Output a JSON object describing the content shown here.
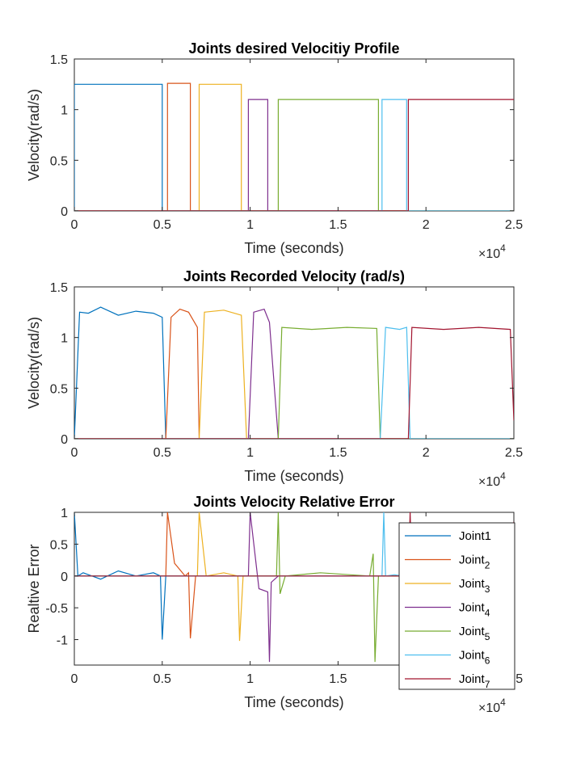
{
  "chart_data": [
    {
      "type": "line",
      "title": "Joints desired Velocitiy Profile",
      "xlabel": "Time (seconds)",
      "ylabel": "Velocity(rad/s)",
      "xlim": [
        0,
        25000
      ],
      "ylim": [
        0,
        1.5
      ],
      "x_ticks": [
        "0",
        "0.5",
        "1",
        "1.5",
        "2",
        "2.5"
      ],
      "y_ticks": [
        "0",
        "0.5",
        "1",
        "1.5"
      ],
      "x_exponent_base": "×10",
      "x_exponent_power": "4",
      "grid": false,
      "series": [
        {
          "name": "Joint1",
          "color": "#0072BD",
          "x": [
            0,
            0,
            5000,
            5000,
            25000
          ],
          "y": [
            0,
            1.25,
            1.25,
            0,
            0
          ]
        },
        {
          "name": "Joint2",
          "color": "#D95319",
          "x": [
            0,
            5300,
            5300,
            6600,
            6600,
            25000
          ],
          "y": [
            0,
            0,
            1.26,
            1.26,
            0,
            0
          ]
        },
        {
          "name": "Joint3",
          "color": "#EDB120",
          "x": [
            0,
            7100,
            7100,
            9500,
            9500,
            25000
          ],
          "y": [
            0,
            0,
            1.25,
            1.25,
            0,
            0
          ]
        },
        {
          "name": "Joint4",
          "color": "#7E2F8E",
          "x": [
            0,
            9900,
            9900,
            11000,
            11000,
            25000
          ],
          "y": [
            0,
            0,
            1.1,
            1.1,
            0,
            0
          ]
        },
        {
          "name": "Joint5",
          "color": "#77AC30",
          "x": [
            0,
            11600,
            11600,
            17300,
            17300,
            25000
          ],
          "y": [
            0,
            0,
            1.1,
            1.1,
            0,
            0
          ]
        },
        {
          "name": "Joint6",
          "color": "#4DBEEE",
          "x": [
            0,
            17500,
            17500,
            18900,
            18900,
            25000
          ],
          "y": [
            0,
            0,
            1.1,
            1.1,
            0,
            0
          ]
        },
        {
          "name": "Joint7",
          "color": "#A2142F",
          "x": [
            0,
            19000,
            19000,
            25000
          ],
          "y": [
            0,
            0,
            1.1,
            1.1
          ]
        }
      ]
    },
    {
      "type": "line",
      "title": "Joints Recorded Velocity (rad/s)",
      "xlabel": "Time (seconds)",
      "ylabel": "Velocity(rad/s)",
      "xlim": [
        0,
        25000
      ],
      "ylim": [
        0,
        1.5
      ],
      "x_ticks": [
        "0",
        "0.5",
        "1",
        "1.5",
        "2",
        "2.5"
      ],
      "y_ticks": [
        "0",
        "0.5",
        "1",
        "1.5"
      ],
      "x_exponent_base": "×10",
      "x_exponent_power": "4",
      "grid": false,
      "series": [
        {
          "name": "Joint1",
          "color": "#0072BD",
          "x": [
            0,
            300,
            800,
            1500,
            2500,
            3500,
            4500,
            5000,
            5200,
            25000
          ],
          "y": [
            0,
            1.25,
            1.24,
            1.3,
            1.22,
            1.26,
            1.24,
            1.2,
            0,
            0
          ]
        },
        {
          "name": "Joint2",
          "color": "#D95319",
          "x": [
            0,
            5200,
            5500,
            6000,
            6500,
            7000,
            7100,
            25000
          ],
          "y": [
            0,
            0,
            1.2,
            1.28,
            1.25,
            1.1,
            0,
            0
          ]
        },
        {
          "name": "Joint3",
          "color": "#EDB120",
          "x": [
            0,
            7100,
            7400,
            8500,
            9500,
            9800,
            25000
          ],
          "y": [
            0,
            0,
            1.25,
            1.27,
            1.22,
            0,
            0
          ]
        },
        {
          "name": "Joint4",
          "color": "#7E2F8E",
          "x": [
            0,
            9900,
            10200,
            10800,
            11100,
            11600,
            25000
          ],
          "y": [
            0,
            0,
            1.25,
            1.28,
            1.15,
            0,
            0
          ]
        },
        {
          "name": "Joint5",
          "color": "#77AC30",
          "x": [
            0,
            11600,
            11800,
            13500,
            15500,
            17200,
            17400,
            25000
          ],
          "y": [
            0,
            0,
            1.1,
            1.08,
            1.1,
            1.09,
            0,
            0
          ]
        },
        {
          "name": "Joint6",
          "color": "#4DBEEE",
          "x": [
            0,
            17400,
            17700,
            18500,
            18900,
            19100,
            25000
          ],
          "y": [
            0,
            0,
            1.1,
            1.08,
            1.1,
            0,
            0
          ]
        },
        {
          "name": "Joint7",
          "color": "#A2142F",
          "x": [
            0,
            19000,
            19200,
            21000,
            23000,
            24800,
            25000
          ],
          "y": [
            0,
            0,
            1.1,
            1.08,
            1.1,
            1.08,
            0.18
          ]
        }
      ]
    },
    {
      "type": "line",
      "title": "Joints Velocity Relative Error",
      "xlabel": "Time (seconds)",
      "ylabel": "Realtive Error",
      "xlim": [
        0,
        25000
      ],
      "ylim": [
        -1.4,
        1
      ],
      "x_ticks": [
        "0",
        "0.5",
        "1",
        "1.5",
        "2",
        "2.5"
      ],
      "y_ticks": [
        "-1",
        "-0.5",
        "0",
        "0.5",
        "1"
      ],
      "x_exponent_base": "×10",
      "x_exponent_power": "4",
      "grid": false,
      "legend": {
        "placement": "bottom-right",
        "entries": [
          {
            "base": "Joint1",
            "sub": ""
          },
          {
            "base": "Joint",
            "sub": "2"
          },
          {
            "base": "Joint",
            "sub": "3"
          },
          {
            "base": "Joint",
            "sub": "4"
          },
          {
            "base": "Joint",
            "sub": "5"
          },
          {
            "base": "Joint",
            "sub": "6"
          },
          {
            "base": "Joint",
            "sub": "7"
          }
        ]
      },
      "series": [
        {
          "name": "Joint1",
          "color": "#0072BD",
          "x": [
            0,
            200,
            500,
            1500,
            2500,
            3500,
            4500,
            4900,
            5000,
            5200,
            25000
          ],
          "y": [
            1,
            0,
            0.05,
            -0.05,
            0.08,
            0,
            0.05,
            0,
            -1,
            0,
            0
          ]
        },
        {
          "name": "Joint2",
          "color": "#D95319",
          "x": [
            0,
            5200,
            5300,
            5700,
            6300,
            6500,
            6600,
            6900,
            7100,
            25000
          ],
          "y": [
            0,
            0,
            1,
            0.2,
            0,
            0.05,
            -0.98,
            0,
            0,
            0
          ]
        },
        {
          "name": "Joint3",
          "color": "#EDB120",
          "x": [
            0,
            7000,
            7100,
            7500,
            8500,
            9300,
            9400,
            9600,
            9900,
            25000
          ],
          "y": [
            0,
            0,
            1,
            0,
            0.05,
            0,
            -1.02,
            0,
            0,
            0
          ]
        },
        {
          "name": "Joint4",
          "color": "#7E2F8E",
          "x": [
            0,
            9900,
            10000,
            10500,
            11000,
            11100,
            11200,
            11600,
            25000
          ],
          "y": [
            0,
            0,
            1,
            -0.2,
            -0.25,
            -1.35,
            -0.1,
            0,
            0
          ]
        },
        {
          "name": "Joint5",
          "color": "#77AC30",
          "x": [
            0,
            11500,
            11600,
            11700,
            12000,
            14000,
            16800,
            17000,
            17100,
            17300,
            25000
          ],
          "y": [
            0,
            0,
            1,
            -0.28,
            0,
            0.05,
            0,
            0.35,
            -1.35,
            0,
            0
          ]
        },
        {
          "name": "Joint6",
          "color": "#4DBEEE",
          "x": [
            0,
            17500,
            17600,
            17700,
            18200,
            18700,
            19000,
            25000
          ],
          "y": [
            0,
            0,
            1,
            0,
            0.02,
            0,
            0,
            0
          ]
        },
        {
          "name": "Joint7",
          "color": "#A2142F",
          "x": [
            0,
            19000,
            19100,
            19200,
            21000,
            24800,
            25000
          ],
          "y": [
            0,
            0,
            1,
            0,
            0.02,
            0,
            0.85
          ]
        }
      ]
    }
  ]
}
